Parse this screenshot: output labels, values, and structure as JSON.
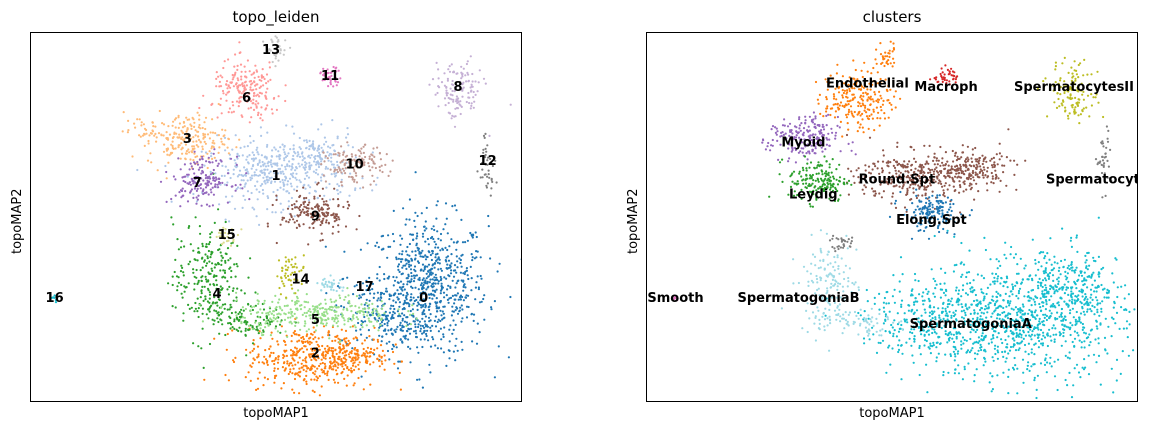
{
  "chart_data": [
    {
      "type": "scatter",
      "title": "topo_leiden",
      "xlabel": "topoMAP1",
      "ylabel": "topoMAP2",
      "xlim": [
        0,
        1
      ],
      "ylim": [
        0,
        1
      ],
      "grid": false,
      "legend": "on data",
      "series": [
        {
          "label": "0",
          "color": "#1f77b4",
          "clouds": [
            {
              "cx": 0.81,
              "cy": 0.31,
              "sx": 0.06,
              "sy": 0.095,
              "n": 700
            },
            {
              "cx": 0.72,
              "cy": 0.24,
              "sx": 0.045,
              "sy": 0.05,
              "n": 180
            }
          ]
        },
        {
          "label": "1",
          "color": "#aec7e8",
          "clouds": [
            {
              "cx": 0.5,
              "cy": 0.62,
              "sx": 0.075,
              "sy": 0.045,
              "n": 380
            },
            {
              "cx": 0.58,
              "cy": 0.66,
              "sx": 0.04,
              "sy": 0.035,
              "n": 120
            }
          ]
        },
        {
          "label": "2",
          "color": "#ff7f0e",
          "clouds": [
            {
              "cx": 0.57,
              "cy": 0.12,
              "sx": 0.065,
              "sy": 0.04,
              "n": 420
            },
            {
              "cx": 0.66,
              "cy": 0.13,
              "sx": 0.035,
              "sy": 0.025,
              "n": 100
            }
          ]
        },
        {
          "label": "3",
          "color": "#ffbb78",
          "clouds": [
            {
              "cx": 0.32,
              "cy": 0.71,
              "sx": 0.04,
              "sy": 0.035,
              "n": 200
            },
            {
              "cx": 0.23,
              "cy": 0.73,
              "sx": 0.02,
              "sy": 0.015,
              "n": 30
            }
          ]
        },
        {
          "label": "4",
          "color": "#2ca02c",
          "clouds": [
            {
              "cx": 0.36,
              "cy": 0.33,
              "sx": 0.035,
              "sy": 0.08,
              "n": 260
            },
            {
              "cx": 0.45,
              "cy": 0.22,
              "sx": 0.035,
              "sy": 0.02,
              "n": 90
            }
          ]
        },
        {
          "label": "5",
          "color": "#98df8a",
          "clouds": [
            {
              "cx": 0.58,
              "cy": 0.24,
              "sx": 0.08,
              "sy": 0.025,
              "n": 320
            }
          ]
        },
        {
          "label": "6",
          "color": "#ff9896",
          "clouds": [
            {
              "cx": 0.44,
              "cy": 0.84,
              "sx": 0.035,
              "sy": 0.04,
              "n": 200
            }
          ]
        },
        {
          "label": "7",
          "color": "#9467bd",
          "clouds": [
            {
              "cx": 0.35,
              "cy": 0.6,
              "sx": 0.03,
              "sy": 0.03,
              "n": 170
            }
          ]
        },
        {
          "label": "8",
          "color": "#c5b0d5",
          "clouds": [
            {
              "cx": 0.87,
              "cy": 0.84,
              "sx": 0.025,
              "sy": 0.04,
              "n": 130
            }
          ]
        },
        {
          "label": "9",
          "color": "#8c564b",
          "clouds": [
            {
              "cx": 0.58,
              "cy": 0.51,
              "sx": 0.035,
              "sy": 0.03,
              "n": 170
            }
          ]
        },
        {
          "label": "10",
          "color": "#c49c94",
          "clouds": [
            {
              "cx": 0.66,
              "cy": 0.64,
              "sx": 0.03,
              "sy": 0.025,
              "n": 130
            }
          ]
        },
        {
          "label": "11",
          "color": "#e377c2",
          "clouds": [
            {
              "cx": 0.61,
              "cy": 0.88,
              "sx": 0.012,
              "sy": 0.012,
              "n": 40
            }
          ]
        },
        {
          "label": "12",
          "color": "#7f7f7f",
          "clouds": [
            {
              "cx": 0.93,
              "cy": 0.65,
              "sx": 0.008,
              "sy": 0.04,
              "n": 40
            }
          ]
        },
        {
          "label": "13",
          "color": "#c7c7c7",
          "clouds": [
            {
              "cx": 0.5,
              "cy": 0.95,
              "sx": 0.012,
              "sy": 0.02,
              "n": 35
            }
          ]
        },
        {
          "label": "14",
          "color": "#bcbd22",
          "clouds": [
            {
              "cx": 0.53,
              "cy": 0.35,
              "sx": 0.015,
              "sy": 0.025,
              "n": 50
            }
          ]
        },
        {
          "label": "15",
          "color": "#dbdb8d",
          "clouds": [
            {
              "cx": 0.4,
              "cy": 0.45,
              "sx": 0.012,
              "sy": 0.012,
              "n": 30
            }
          ]
        },
        {
          "label": "16",
          "color": "#17becf",
          "clouds": [
            {
              "cx": 0.05,
              "cy": 0.28,
              "sx": 0.004,
              "sy": 0.004,
              "n": 6
            }
          ]
        },
        {
          "label": "17",
          "color": "#9edae5",
          "clouds": [
            {
              "cx": 0.61,
              "cy": 0.32,
              "sx": 0.012,
              "sy": 0.012,
              "n": 35
            }
          ]
        }
      ],
      "labels": [
        {
          "text": "0",
          "x": 0.8,
          "y": 0.28
        },
        {
          "text": "1",
          "x": 0.5,
          "y": 0.61
        },
        {
          "text": "2",
          "x": 0.58,
          "y": 0.13
        },
        {
          "text": "3",
          "x": 0.32,
          "y": 0.71
        },
        {
          "text": "4",
          "x": 0.38,
          "y": 0.29
        },
        {
          "text": "5",
          "x": 0.58,
          "y": 0.22
        },
        {
          "text": "6",
          "x": 0.44,
          "y": 0.82
        },
        {
          "text": "7",
          "x": 0.34,
          "y": 0.59
        },
        {
          "text": "8",
          "x": 0.87,
          "y": 0.85
        },
        {
          "text": "9",
          "x": 0.58,
          "y": 0.5
        },
        {
          "text": "10",
          "x": 0.66,
          "y": 0.64
        },
        {
          "text": "11",
          "x": 0.61,
          "y": 0.88
        },
        {
          "text": "12",
          "x": 0.93,
          "y": 0.65
        },
        {
          "text": "13",
          "x": 0.49,
          "y": 0.95
        },
        {
          "text": "14",
          "x": 0.55,
          "y": 0.33
        },
        {
          "text": "15",
          "x": 0.4,
          "y": 0.45
        },
        {
          "text": "16",
          "x": 0.05,
          "y": 0.28
        },
        {
          "text": "17",
          "x": 0.68,
          "y": 0.31
        }
      ]
    },
    {
      "type": "scatter",
      "title": "clusters",
      "xlabel": "topoMAP1",
      "ylabel": "topoMAP2",
      "xlim": [
        0,
        1
      ],
      "ylim": [
        0,
        1
      ],
      "grid": false,
      "legend": "on data",
      "series": [
        {
          "label": "SpermatogoniaA",
          "color": "#17becf",
          "clouds": [
            {
              "cx": 0.75,
              "cy": 0.22,
              "sx": 0.11,
              "sy": 0.08,
              "n": 900
            },
            {
              "cx": 0.86,
              "cy": 0.3,
              "sx": 0.05,
              "sy": 0.06,
              "n": 250
            },
            {
              "cx": 0.58,
              "cy": 0.22,
              "sx": 0.07,
              "sy": 0.05,
              "n": 250
            }
          ]
        },
        {
          "label": "SpermatogoniaB",
          "color": "#9edae5",
          "clouds": [
            {
              "cx": 0.37,
              "cy": 0.31,
              "sx": 0.03,
              "sy": 0.06,
              "n": 160
            },
            {
              "cx": 0.44,
              "cy": 0.22,
              "sx": 0.03,
              "sy": 0.02,
              "n": 60
            }
          ]
        },
        {
          "label": "Round.Spt",
          "color": "#8c564b",
          "clouds": [
            {
              "cx": 0.55,
              "cy": 0.61,
              "sx": 0.06,
              "sy": 0.035,
              "n": 320
            },
            {
              "cx": 0.66,
              "cy": 0.63,
              "sx": 0.04,
              "sy": 0.025,
              "n": 180
            }
          ]
        },
        {
          "label": "Elong.Spt",
          "color": "#1f77b4",
          "clouds": [
            {
              "cx": 0.58,
              "cy": 0.51,
              "sx": 0.03,
              "sy": 0.025,
              "n": 150
            }
          ]
        },
        {
          "label": "Endothelial",
          "color": "#ff7f0e",
          "clouds": [
            {
              "cx": 0.43,
              "cy": 0.82,
              "sx": 0.035,
              "sy": 0.04,
              "n": 220
            },
            {
              "cx": 0.49,
              "cy": 0.94,
              "sx": 0.01,
              "sy": 0.02,
              "n": 30
            }
          ]
        },
        {
          "label": "Macroph",
          "color": "#d62728",
          "clouds": [
            {
              "cx": 0.61,
              "cy": 0.88,
              "sx": 0.012,
              "sy": 0.012,
              "n": 40
            }
          ]
        },
        {
          "label": "SpermatocytesII",
          "color": "#bcbd22",
          "clouds": [
            {
              "cx": 0.87,
              "cy": 0.84,
              "sx": 0.025,
              "sy": 0.04,
              "n": 130
            }
          ]
        },
        {
          "label": "SpermatocytesI",
          "color": "#7f7f7f",
          "clouds": [
            {
              "cx": 0.93,
              "cy": 0.65,
              "sx": 0.008,
              "sy": 0.04,
              "n": 40
            },
            {
              "cx": 0.4,
              "cy": 0.43,
              "sx": 0.012,
              "sy": 0.012,
              "n": 30
            }
          ]
        },
        {
          "label": "Myoid",
          "color": "#9467bd",
          "clouds": [
            {
              "cx": 0.32,
              "cy": 0.71,
              "sx": 0.035,
              "sy": 0.03,
              "n": 200
            }
          ]
        },
        {
          "label": "Leydig",
          "color": "#2ca02c",
          "clouds": [
            {
              "cx": 0.35,
              "cy": 0.6,
              "sx": 0.03,
              "sy": 0.03,
              "n": 170
            }
          ]
        },
        {
          "label": "Smooth",
          "color": "#e377c2",
          "clouds": [
            {
              "cx": 0.06,
              "cy": 0.28,
              "sx": 0.004,
              "sy": 0.004,
              "n": 6
            }
          ]
        }
      ],
      "labels": [
        {
          "text": "SpermatogoniaA",
          "x": 0.66,
          "y": 0.21
        },
        {
          "text": "SpermatogoniaB",
          "x": 0.31,
          "y": 0.28
        },
        {
          "text": "Round.Spt",
          "x": 0.51,
          "y": 0.6
        },
        {
          "text": "Elong.Spt",
          "x": 0.58,
          "y": 0.49
        },
        {
          "text": "Endothelial",
          "x": 0.45,
          "y": 0.86
        },
        {
          "text": "Macroph",
          "x": 0.61,
          "y": 0.85
        },
        {
          "text": "SpermatocytesII",
          "x": 0.87,
          "y": 0.85
        },
        {
          "text": "SpermatocytesI",
          "x": 0.93,
          "y": 0.6
        },
        {
          "text": "Myoid",
          "x": 0.32,
          "y": 0.7
        },
        {
          "text": "Leydig",
          "x": 0.34,
          "y": 0.56
        },
        {
          "text": "Smooth",
          "x": 0.06,
          "y": 0.28
        }
      ]
    }
  ]
}
